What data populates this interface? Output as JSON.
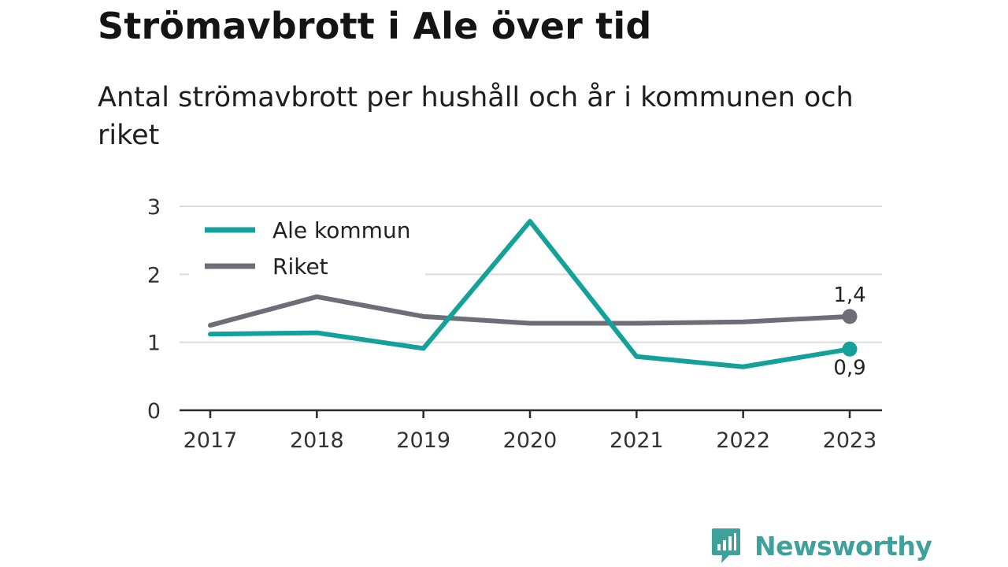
{
  "brand": {
    "name": "Newsworthy",
    "color": "#3fa19c",
    "icon": "bar-chart-speech-bubble-icon"
  },
  "chart_data": {
    "type": "line",
    "title": "Strömavbrott i Ale över tid",
    "subtitle": "Antal strömavbrott per hushåll och år i kommunen och riket",
    "x": [
      "2017",
      "2018",
      "2019",
      "2020",
      "2021",
      "2022",
      "2023"
    ],
    "series": [
      {
        "name": "Ale kommun",
        "color": "#13a19a",
        "values": [
          1.12,
          1.14,
          0.91,
          2.78,
          0.79,
          0.64,
          0.9
        ],
        "end_label": "0,9"
      },
      {
        "name": "Riket",
        "color": "#6e6e76",
        "values": [
          1.25,
          1.67,
          1.38,
          1.28,
          1.28,
          1.3,
          1.38
        ],
        "end_label": "1,4"
      }
    ],
    "ylim": [
      0,
      3
    ],
    "yticks": [
      "0",
      "1",
      "2",
      "3"
    ],
    "grid": true,
    "legend": "top-left"
  }
}
